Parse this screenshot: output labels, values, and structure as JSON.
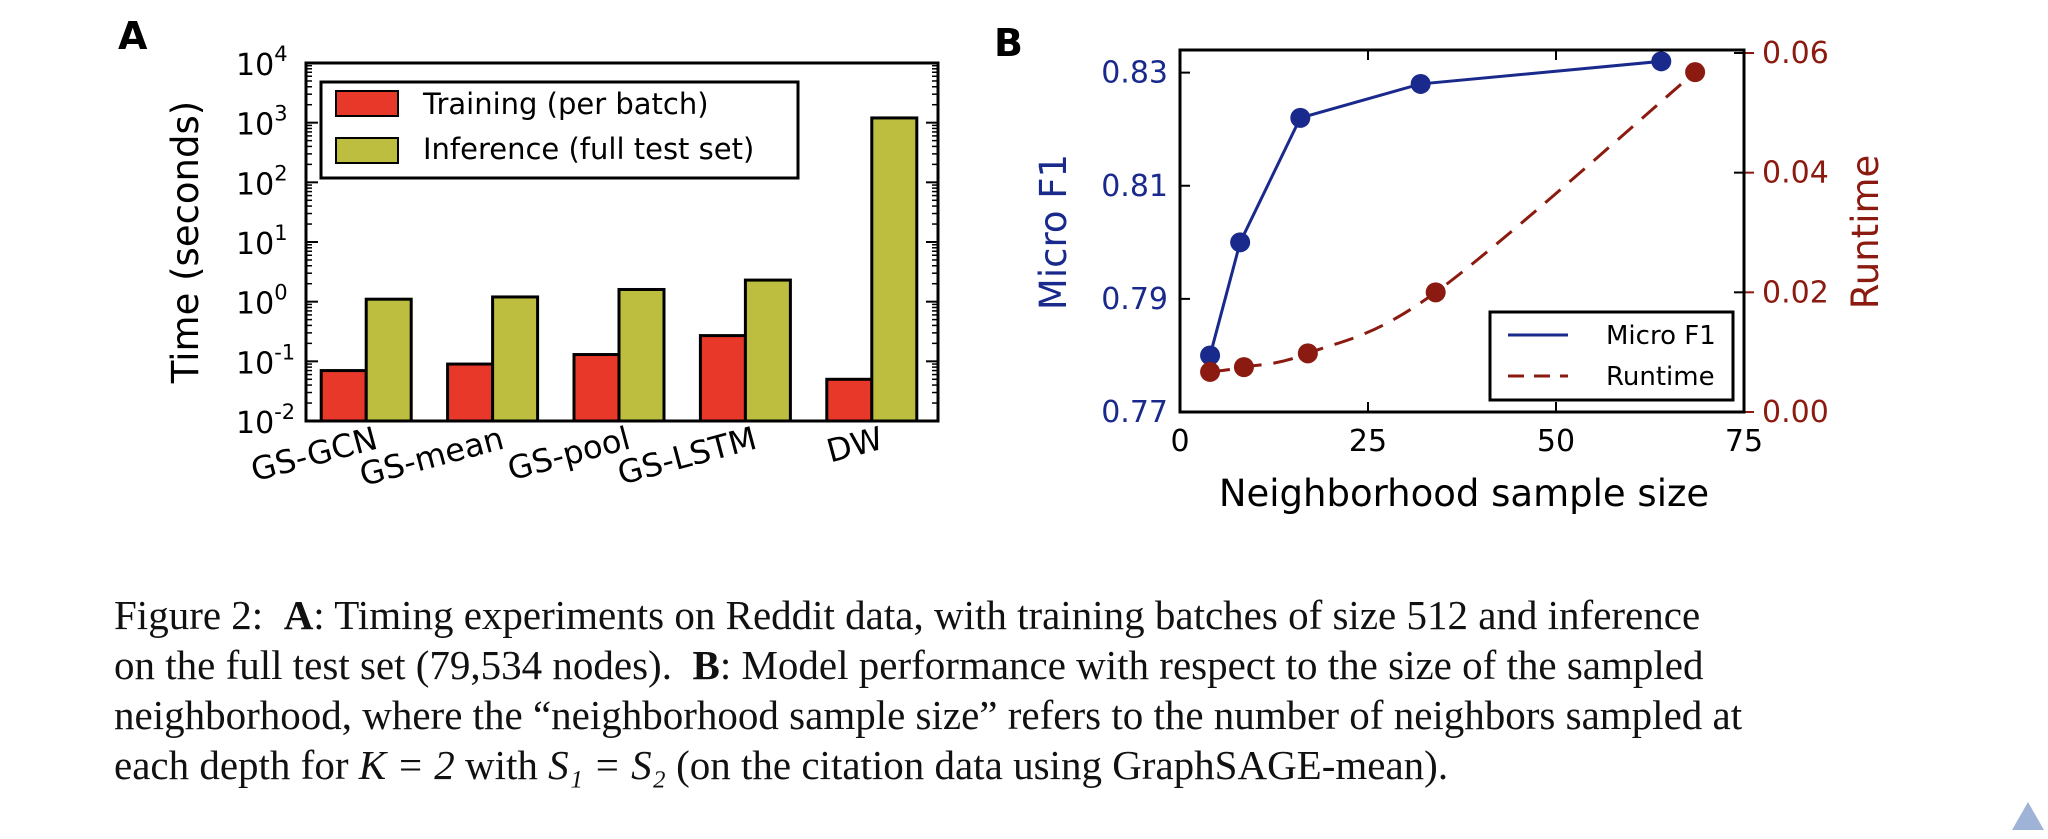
{
  "chart_data": [
    {
      "panel": "A",
      "type": "bar",
      "yscale": "log",
      "ylabel": "Time (seconds)",
      "ylim": [
        0.01,
        10000
      ],
      "ytick_base": "10",
      "ytick_exponents": [
        "-2",
        "-1",
        "0",
        "1",
        "2",
        "3",
        "4"
      ],
      "categories": [
        "GS-GCN",
        "GS-mean",
        "GS-pool",
        "GS-LSTM",
        "DW"
      ],
      "series": [
        {
          "name": "Training (per batch)",
          "color": "#e8382a",
          "values": [
            0.07,
            0.09,
            0.13,
            0.27,
            0.05
          ]
        },
        {
          "name": "Inference (full test set)",
          "color": "#bdbd40",
          "values": [
            1.1,
            1.2,
            1.6,
            2.3,
            1200
          ]
        }
      ],
      "legend": "top-left"
    },
    {
      "panel": "B",
      "type": "line",
      "xlabel": "Neighborhood sample size",
      "ylabel": "Micro F1",
      "y2label": "Runtime",
      "xlim": [
        0,
        75
      ],
      "xticks": [
        "0",
        "25",
        "50",
        "75"
      ],
      "ylim": [
        0.77,
        0.834
      ],
      "yticks": [
        "0.77",
        "0.79",
        "0.81",
        "0.83"
      ],
      "y2lim": [
        0,
        0.0605
      ],
      "y2ticks": [
        "0.00",
        "0.02",
        "0.04",
        "0.06"
      ],
      "series": [
        {
          "name": "Micro F1",
          "axis": "left",
          "style": "solid",
          "color": "#1a2a8c",
          "x": [
            4,
            8,
            16,
            32,
            64
          ],
          "y": [
            0.78,
            0.8,
            0.822,
            0.828,
            0.832
          ]
        },
        {
          "name": "Runtime",
          "axis": "right",
          "style": "dashed",
          "color": "#8b1a10",
          "x": [
            4,
            8.5,
            17,
            34,
            68.5
          ],
          "y": [
            0.0067,
            0.0075,
            0.0098,
            0.02,
            0.0568
          ]
        }
      ],
      "legend": "bottom-right"
    }
  ],
  "panels": {
    "a_label": "A",
    "b_label": "B"
  },
  "caption": {
    "figure_label": "Figure 2:",
    "a_bold": "A",
    "a_text": ": Timing experiments on Reddit data, with training batches of size 512 and inference",
    "line2_a": "on the full test set (79,534 nodes).",
    "b_bold": "B",
    "line2_b": ": Model performance with respect to the size of the sampled",
    "line3": "neighborhood, where the “neighborhood sample size” refers to the number of neighbors sampled at",
    "line4_pre": "each depth for",
    "eq1": "K = 2",
    "line4_mid": "with",
    "eq2": "S₁ = S₂",
    "line4_post": "(on the citation data using GraphSAGE-mean)."
  }
}
